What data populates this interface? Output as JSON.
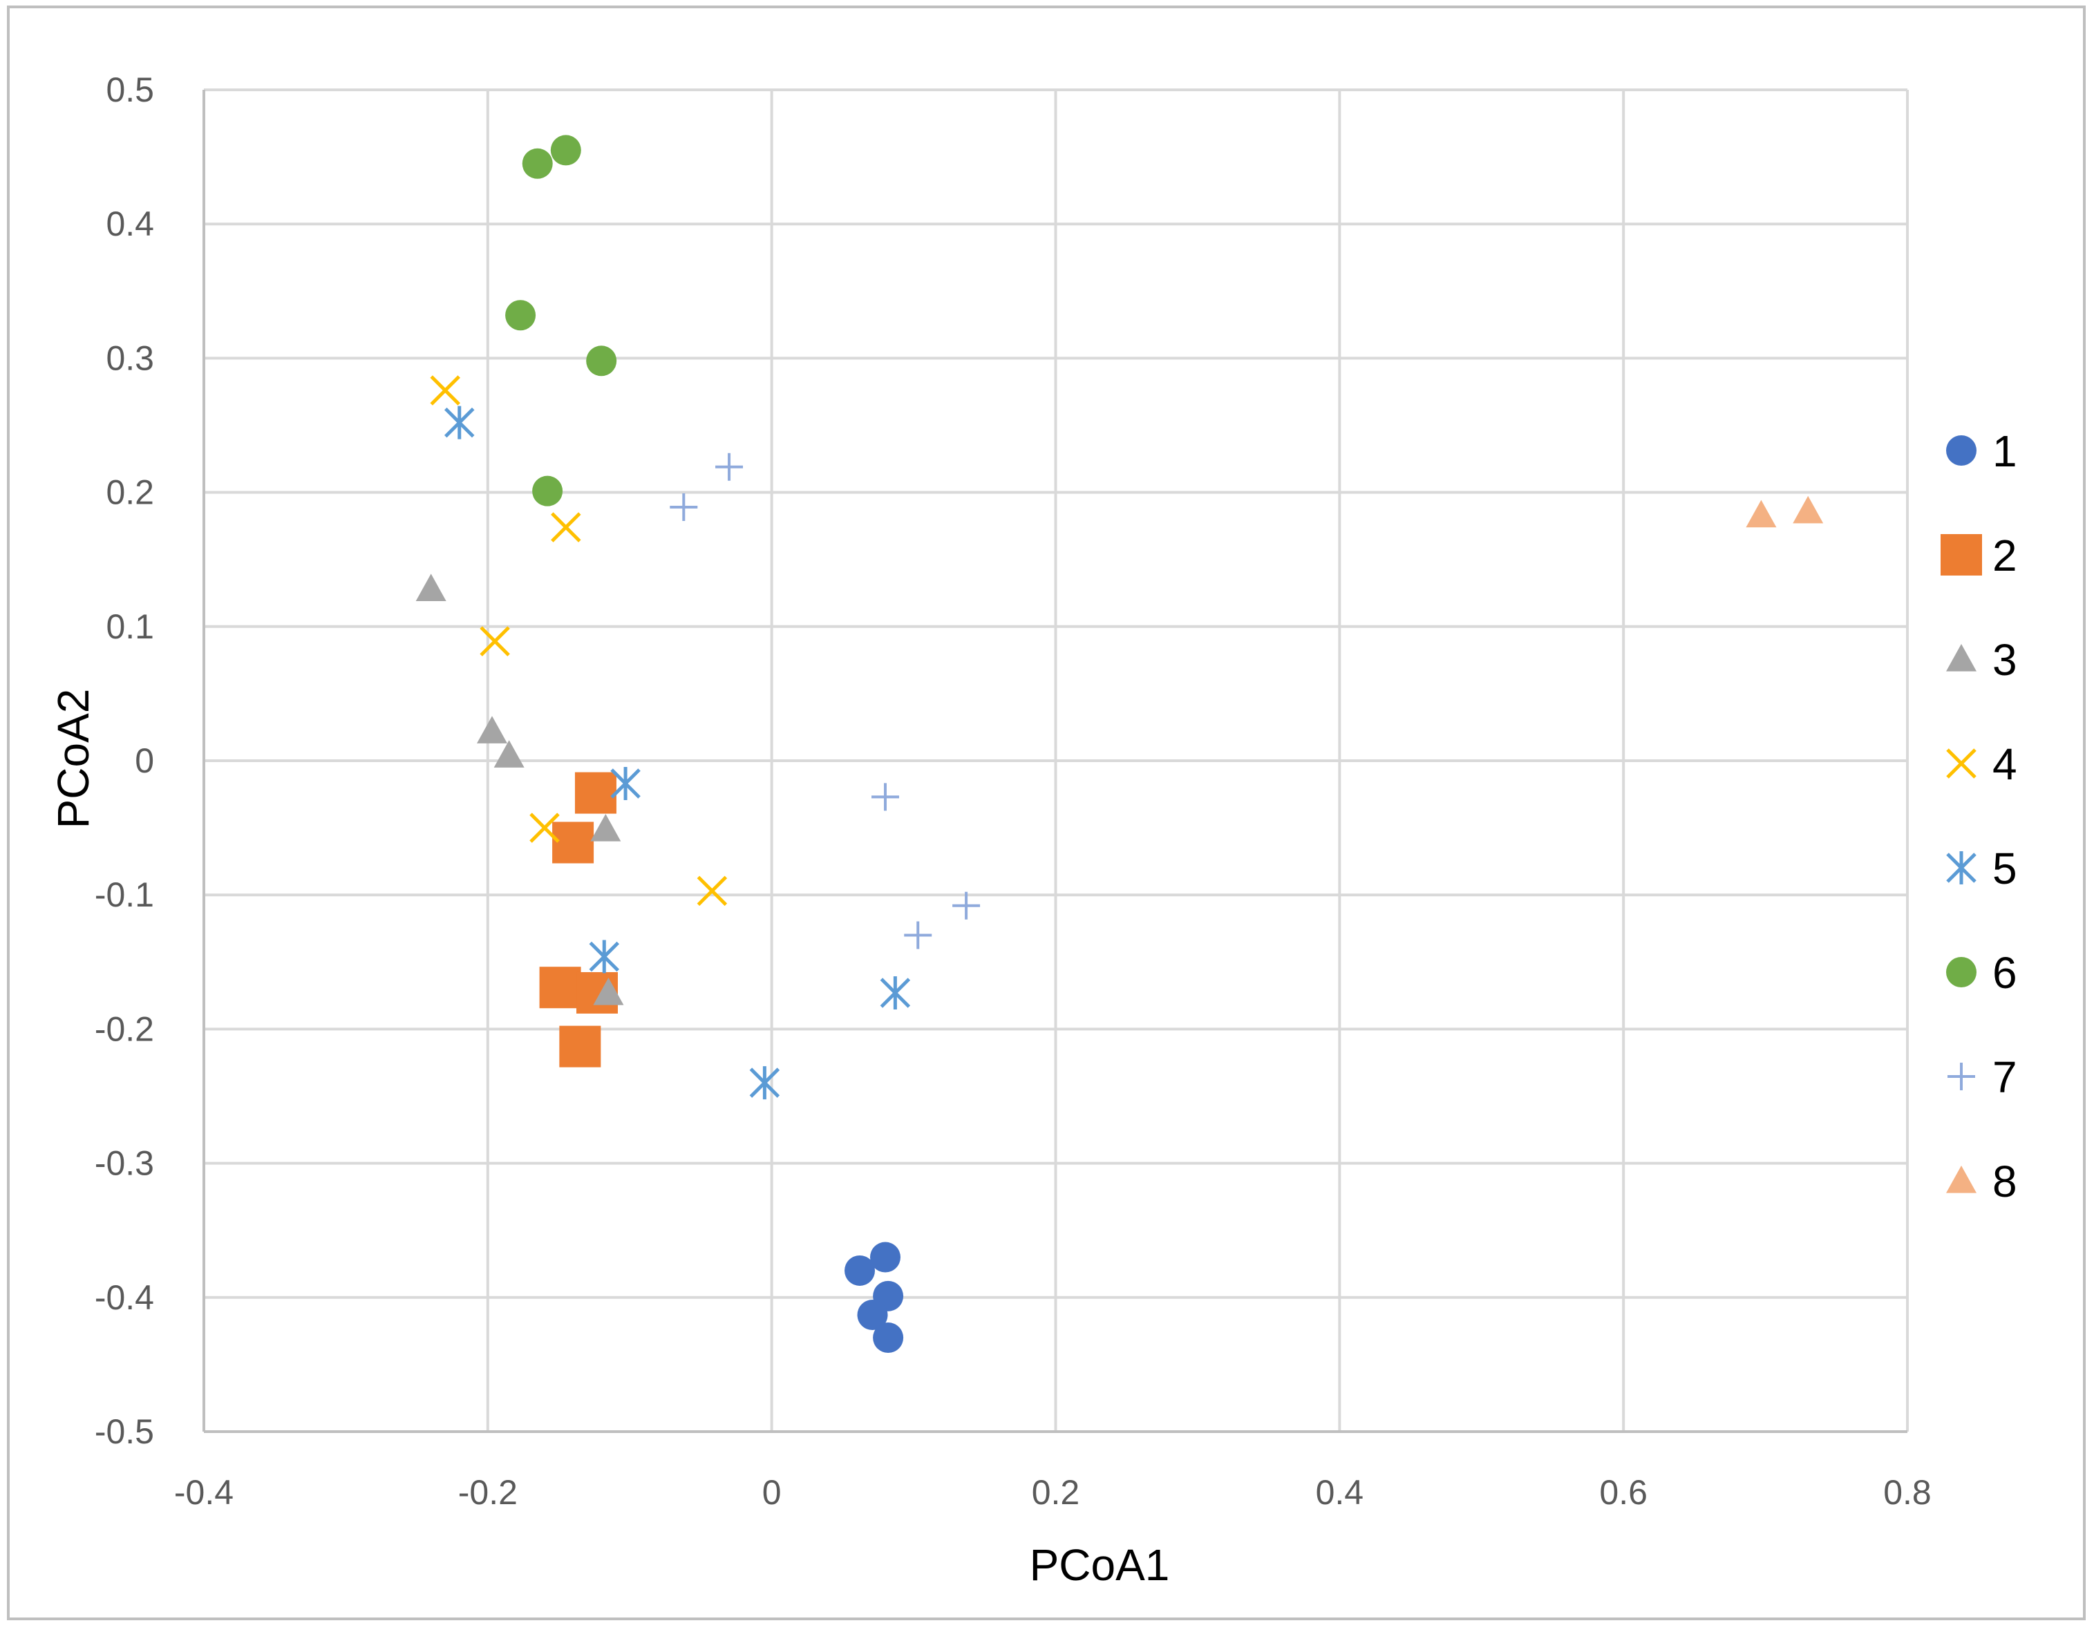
{
  "chart_data": {
    "type": "scatter",
    "title": "",
    "xlabel": "PCoA1",
    "ylabel": "PCoA2",
    "xlim": [
      -0.4,
      0.8
    ],
    "ylim": [
      -0.5,
      0.5
    ],
    "x_ticks": [
      "-0.4",
      "-0.2",
      "0",
      "0.2",
      "0.4",
      "0.6",
      "0.8"
    ],
    "y_ticks": [
      "0.5",
      "0.4",
      "0.3",
      "0.2",
      "0.1",
      "0",
      "-0.1",
      "-0.2",
      "-0.3",
      "-0.4",
      "-0.5"
    ],
    "grid": true,
    "legend_position": "right",
    "series": [
      {
        "name": "1",
        "marker": "circle",
        "color": "#4472C4",
        "points": [
          [
            0.062,
            -0.38
          ],
          [
            0.08,
            -0.37
          ],
          [
            0.082,
            -0.399
          ],
          [
            0.071,
            -0.413
          ],
          [
            0.082,
            -0.43
          ]
        ]
      },
      {
        "name": "2",
        "marker": "square",
        "color": "#ED7D31",
        "points": [
          [
            -0.124,
            -0.024
          ],
          [
            -0.14,
            -0.061
          ],
          [
            -0.149,
            -0.169
          ],
          [
            -0.123,
            -0.173
          ],
          [
            -0.135,
            -0.213
          ]
        ]
      },
      {
        "name": "3",
        "marker": "triangle",
        "color": "#A5A5A5",
        "points": [
          [
            -0.24,
            0.128
          ],
          [
            -0.197,
            0.022
          ],
          [
            -0.185,
            0.004
          ],
          [
            -0.117,
            -0.051
          ],
          [
            -0.115,
            -0.173
          ]
        ]
      },
      {
        "name": "4",
        "marker": "x",
        "color": "#FFC000",
        "points": [
          [
            -0.23,
            0.276
          ],
          [
            -0.145,
            0.174
          ],
          [
            -0.195,
            0.089
          ],
          [
            -0.16,
            -0.05
          ],
          [
            -0.042,
            -0.097
          ]
        ]
      },
      {
        "name": "5",
        "marker": "asterisk",
        "color": "#5B9BD5",
        "points": [
          [
            -0.22,
            0.252
          ],
          [
            -0.103,
            -0.017
          ],
          [
            -0.118,
            -0.146
          ],
          [
            -0.005,
            -0.24
          ],
          [
            0.087,
            -0.173
          ]
        ]
      },
      {
        "name": "6",
        "marker": "circle",
        "color": "#70AD47",
        "points": [
          [
            -0.165,
            0.445
          ],
          [
            -0.145,
            0.455
          ],
          [
            -0.177,
            0.332
          ],
          [
            -0.12,
            0.298
          ],
          [
            -0.158,
            0.201
          ]
        ]
      },
      {
        "name": "7",
        "marker": "plus",
        "color": "#8FAADC",
        "points": [
          [
            -0.062,
            0.189
          ],
          [
            -0.03,
            0.219
          ],
          [
            0.08,
            -0.027
          ],
          [
            0.103,
            -0.13
          ],
          [
            0.137,
            -0.108
          ]
        ]
      },
      {
        "name": "8",
        "marker": "triangle",
        "color": "#F4B183",
        "points": [
          [
            0.697,
            0.183
          ],
          [
            0.73,
            0.186
          ]
        ]
      }
    ]
  }
}
